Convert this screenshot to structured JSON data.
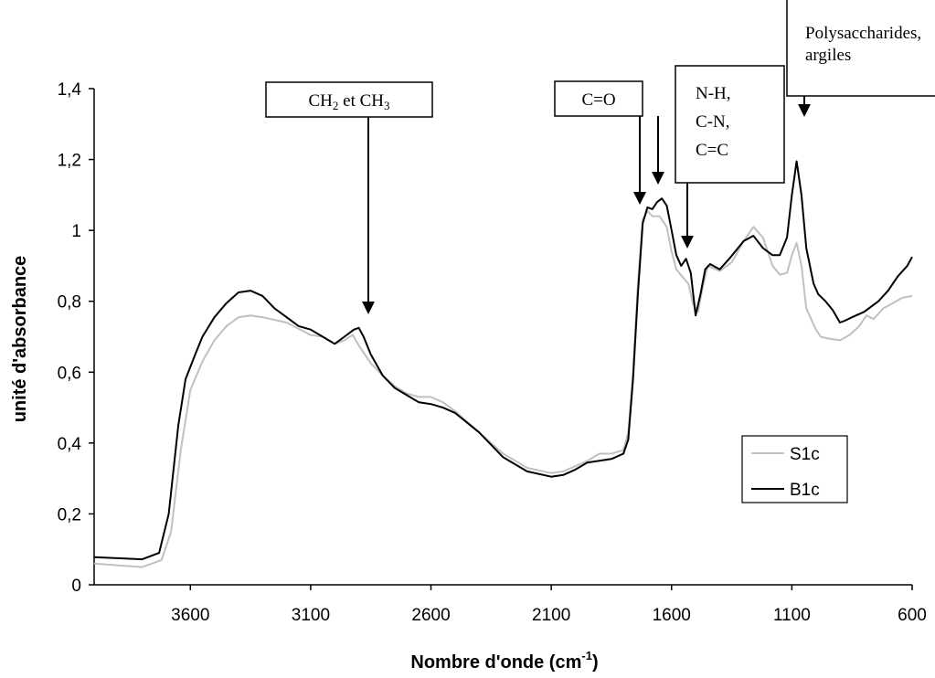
{
  "chart_data": {
    "type": "line",
    "xlabel": "Nombre d'onde (cm",
    "xlabel_sup": "-1",
    "xlabel_close": ")",
    "ylabel": "unité d'absorbance",
    "xlim": [
      4000,
      600
    ],
    "ylim": [
      0,
      1.4
    ],
    "x_reversed": true,
    "x_ticks": [
      3600,
      3100,
      2600,
      2100,
      1600,
      1100,
      600
    ],
    "x_tick_labels": [
      "3600",
      "3100",
      "2600",
      "2100",
      "1600",
      "1100",
      "600"
    ],
    "y_ticks": [
      0,
      0.2,
      0.4,
      0.6,
      0.8,
      1,
      1.2,
      1.4
    ],
    "y_tick_labels": [
      "0",
      "0,2",
      "0,4",
      "0,6",
      "0,8",
      "1",
      "1,2",
      "1,4"
    ],
    "grid": false,
    "legend_position": "right-bottom",
    "series": [
      {
        "name": "S1c",
        "color": "#c0c0c0",
        "points": [
          [
            4000,
            0.06
          ],
          [
            3900,
            0.055
          ],
          [
            3800,
            0.05
          ],
          [
            3720,
            0.07
          ],
          [
            3680,
            0.15
          ],
          [
            3640,
            0.38
          ],
          [
            3600,
            0.55
          ],
          [
            3550,
            0.63
          ],
          [
            3500,
            0.69
          ],
          [
            3450,
            0.73
          ],
          [
            3400,
            0.755
          ],
          [
            3350,
            0.76
          ],
          [
            3300,
            0.755
          ],
          [
            3200,
            0.74
          ],
          [
            3100,
            0.705
          ],
          [
            3050,
            0.7
          ],
          [
            3000,
            0.68
          ],
          [
            2960,
            0.69
          ],
          [
            2925,
            0.705
          ],
          [
            2900,
            0.675
          ],
          [
            2850,
            0.625
          ],
          [
            2800,
            0.59
          ],
          [
            2750,
            0.56
          ],
          [
            2700,
            0.54
          ],
          [
            2650,
            0.53
          ],
          [
            2600,
            0.53
          ],
          [
            2550,
            0.515
          ],
          [
            2500,
            0.49
          ],
          [
            2400,
            0.43
          ],
          [
            2300,
            0.37
          ],
          [
            2200,
            0.33
          ],
          [
            2100,
            0.315
          ],
          [
            2050,
            0.32
          ],
          [
            2000,
            0.335
          ],
          [
            1950,
            0.35
          ],
          [
            1900,
            0.37
          ],
          [
            1850,
            0.37
          ],
          [
            1800,
            0.38
          ],
          [
            1780,
            0.43
          ],
          [
            1760,
            0.6
          ],
          [
            1740,
            0.85
          ],
          [
            1720,
            1.03
          ],
          [
            1700,
            1.055
          ],
          [
            1680,
            1.04
          ],
          [
            1650,
            1.04
          ],
          [
            1620,
            1.01
          ],
          [
            1600,
            0.94
          ],
          [
            1580,
            0.89
          ],
          [
            1550,
            0.865
          ],
          [
            1530,
            0.85
          ],
          [
            1510,
            0.79
          ],
          [
            1490,
            0.77
          ],
          [
            1470,
            0.84
          ],
          [
            1450,
            0.9
          ],
          [
            1400,
            0.885
          ],
          [
            1350,
            0.91
          ],
          [
            1300,
            0.97
          ],
          [
            1260,
            1.01
          ],
          [
            1220,
            0.98
          ],
          [
            1180,
            0.9
          ],
          [
            1150,
            0.875
          ],
          [
            1120,
            0.88
          ],
          [
            1100,
            0.93
          ],
          [
            1080,
            0.965
          ],
          [
            1060,
            0.9
          ],
          [
            1040,
            0.78
          ],
          [
            1000,
            0.72
          ],
          [
            980,
            0.7
          ],
          [
            950,
            0.695
          ],
          [
            900,
            0.69
          ],
          [
            860,
            0.705
          ],
          [
            820,
            0.73
          ],
          [
            790,
            0.76
          ],
          [
            760,
            0.75
          ],
          [
            720,
            0.78
          ],
          [
            680,
            0.795
          ],
          [
            640,
            0.81
          ],
          [
            600,
            0.815
          ]
        ]
      },
      {
        "name": "B1c",
        "color": "#000000",
        "points": [
          [
            4000,
            0.078
          ],
          [
            3900,
            0.075
          ],
          [
            3800,
            0.072
          ],
          [
            3730,
            0.09
          ],
          [
            3690,
            0.2
          ],
          [
            3650,
            0.45
          ],
          [
            3620,
            0.58
          ],
          [
            3580,
            0.65
          ],
          [
            3550,
            0.7
          ],
          [
            3500,
            0.755
          ],
          [
            3450,
            0.795
          ],
          [
            3400,
            0.825
          ],
          [
            3350,
            0.83
          ],
          [
            3300,
            0.815
          ],
          [
            3250,
            0.78
          ],
          [
            3200,
            0.755
          ],
          [
            3150,
            0.73
          ],
          [
            3100,
            0.72
          ],
          [
            3050,
            0.7
          ],
          [
            3000,
            0.68
          ],
          [
            2960,
            0.7
          ],
          [
            2920,
            0.72
          ],
          [
            2900,
            0.725
          ],
          [
            2880,
            0.7
          ],
          [
            2850,
            0.65
          ],
          [
            2800,
            0.59
          ],
          [
            2750,
            0.555
          ],
          [
            2700,
            0.535
          ],
          [
            2650,
            0.515
          ],
          [
            2600,
            0.51
          ],
          [
            2550,
            0.5
          ],
          [
            2500,
            0.485
          ],
          [
            2400,
            0.43
          ],
          [
            2300,
            0.36
          ],
          [
            2200,
            0.32
          ],
          [
            2100,
            0.305
          ],
          [
            2050,
            0.31
          ],
          [
            2000,
            0.325
          ],
          [
            1950,
            0.345
          ],
          [
            1900,
            0.35
          ],
          [
            1850,
            0.355
          ],
          [
            1800,
            0.37
          ],
          [
            1780,
            0.41
          ],
          [
            1760,
            0.58
          ],
          [
            1740,
            0.82
          ],
          [
            1720,
            1.02
          ],
          [
            1700,
            1.065
          ],
          [
            1680,
            1.06
          ],
          [
            1660,
            1.08
          ],
          [
            1640,
            1.09
          ],
          [
            1620,
            1.07
          ],
          [
            1600,
            1.0
          ],
          [
            1580,
            0.93
          ],
          [
            1560,
            0.9
          ],
          [
            1540,
            0.92
          ],
          [
            1520,
            0.88
          ],
          [
            1500,
            0.76
          ],
          [
            1480,
            0.82
          ],
          [
            1460,
            0.89
          ],
          [
            1440,
            0.905
          ],
          [
            1400,
            0.89
          ],
          [
            1360,
            0.92
          ],
          [
            1300,
            0.97
          ],
          [
            1260,
            0.985
          ],
          [
            1220,
            0.95
          ],
          [
            1180,
            0.93
          ],
          [
            1150,
            0.93
          ],
          [
            1120,
            0.98
          ],
          [
            1100,
            1.1
          ],
          [
            1080,
            1.195
          ],
          [
            1060,
            1.1
          ],
          [
            1040,
            0.95
          ],
          [
            1010,
            0.85
          ],
          [
            990,
            0.82
          ],
          [
            960,
            0.8
          ],
          [
            930,
            0.775
          ],
          [
            900,
            0.74
          ],
          [
            880,
            0.745
          ],
          [
            850,
            0.755
          ],
          [
            800,
            0.77
          ],
          [
            740,
            0.8
          ],
          [
            700,
            0.83
          ],
          [
            660,
            0.87
          ],
          [
            620,
            0.9
          ],
          [
            600,
            0.925
          ]
        ]
      }
    ],
    "annotations": [
      {
        "id": "ch",
        "text": "CH",
        "sub1": "2",
        "mid": " et CH",
        "sub2": "3"
      },
      {
        "id": "co",
        "text": "C=O"
      },
      {
        "id": "nh",
        "lines": [
          "N-H,",
          "C-N,",
          "C=C"
        ]
      },
      {
        "id": "poly",
        "lines": [
          "Polysaccharides,",
          "argiles"
        ]
      }
    ]
  }
}
